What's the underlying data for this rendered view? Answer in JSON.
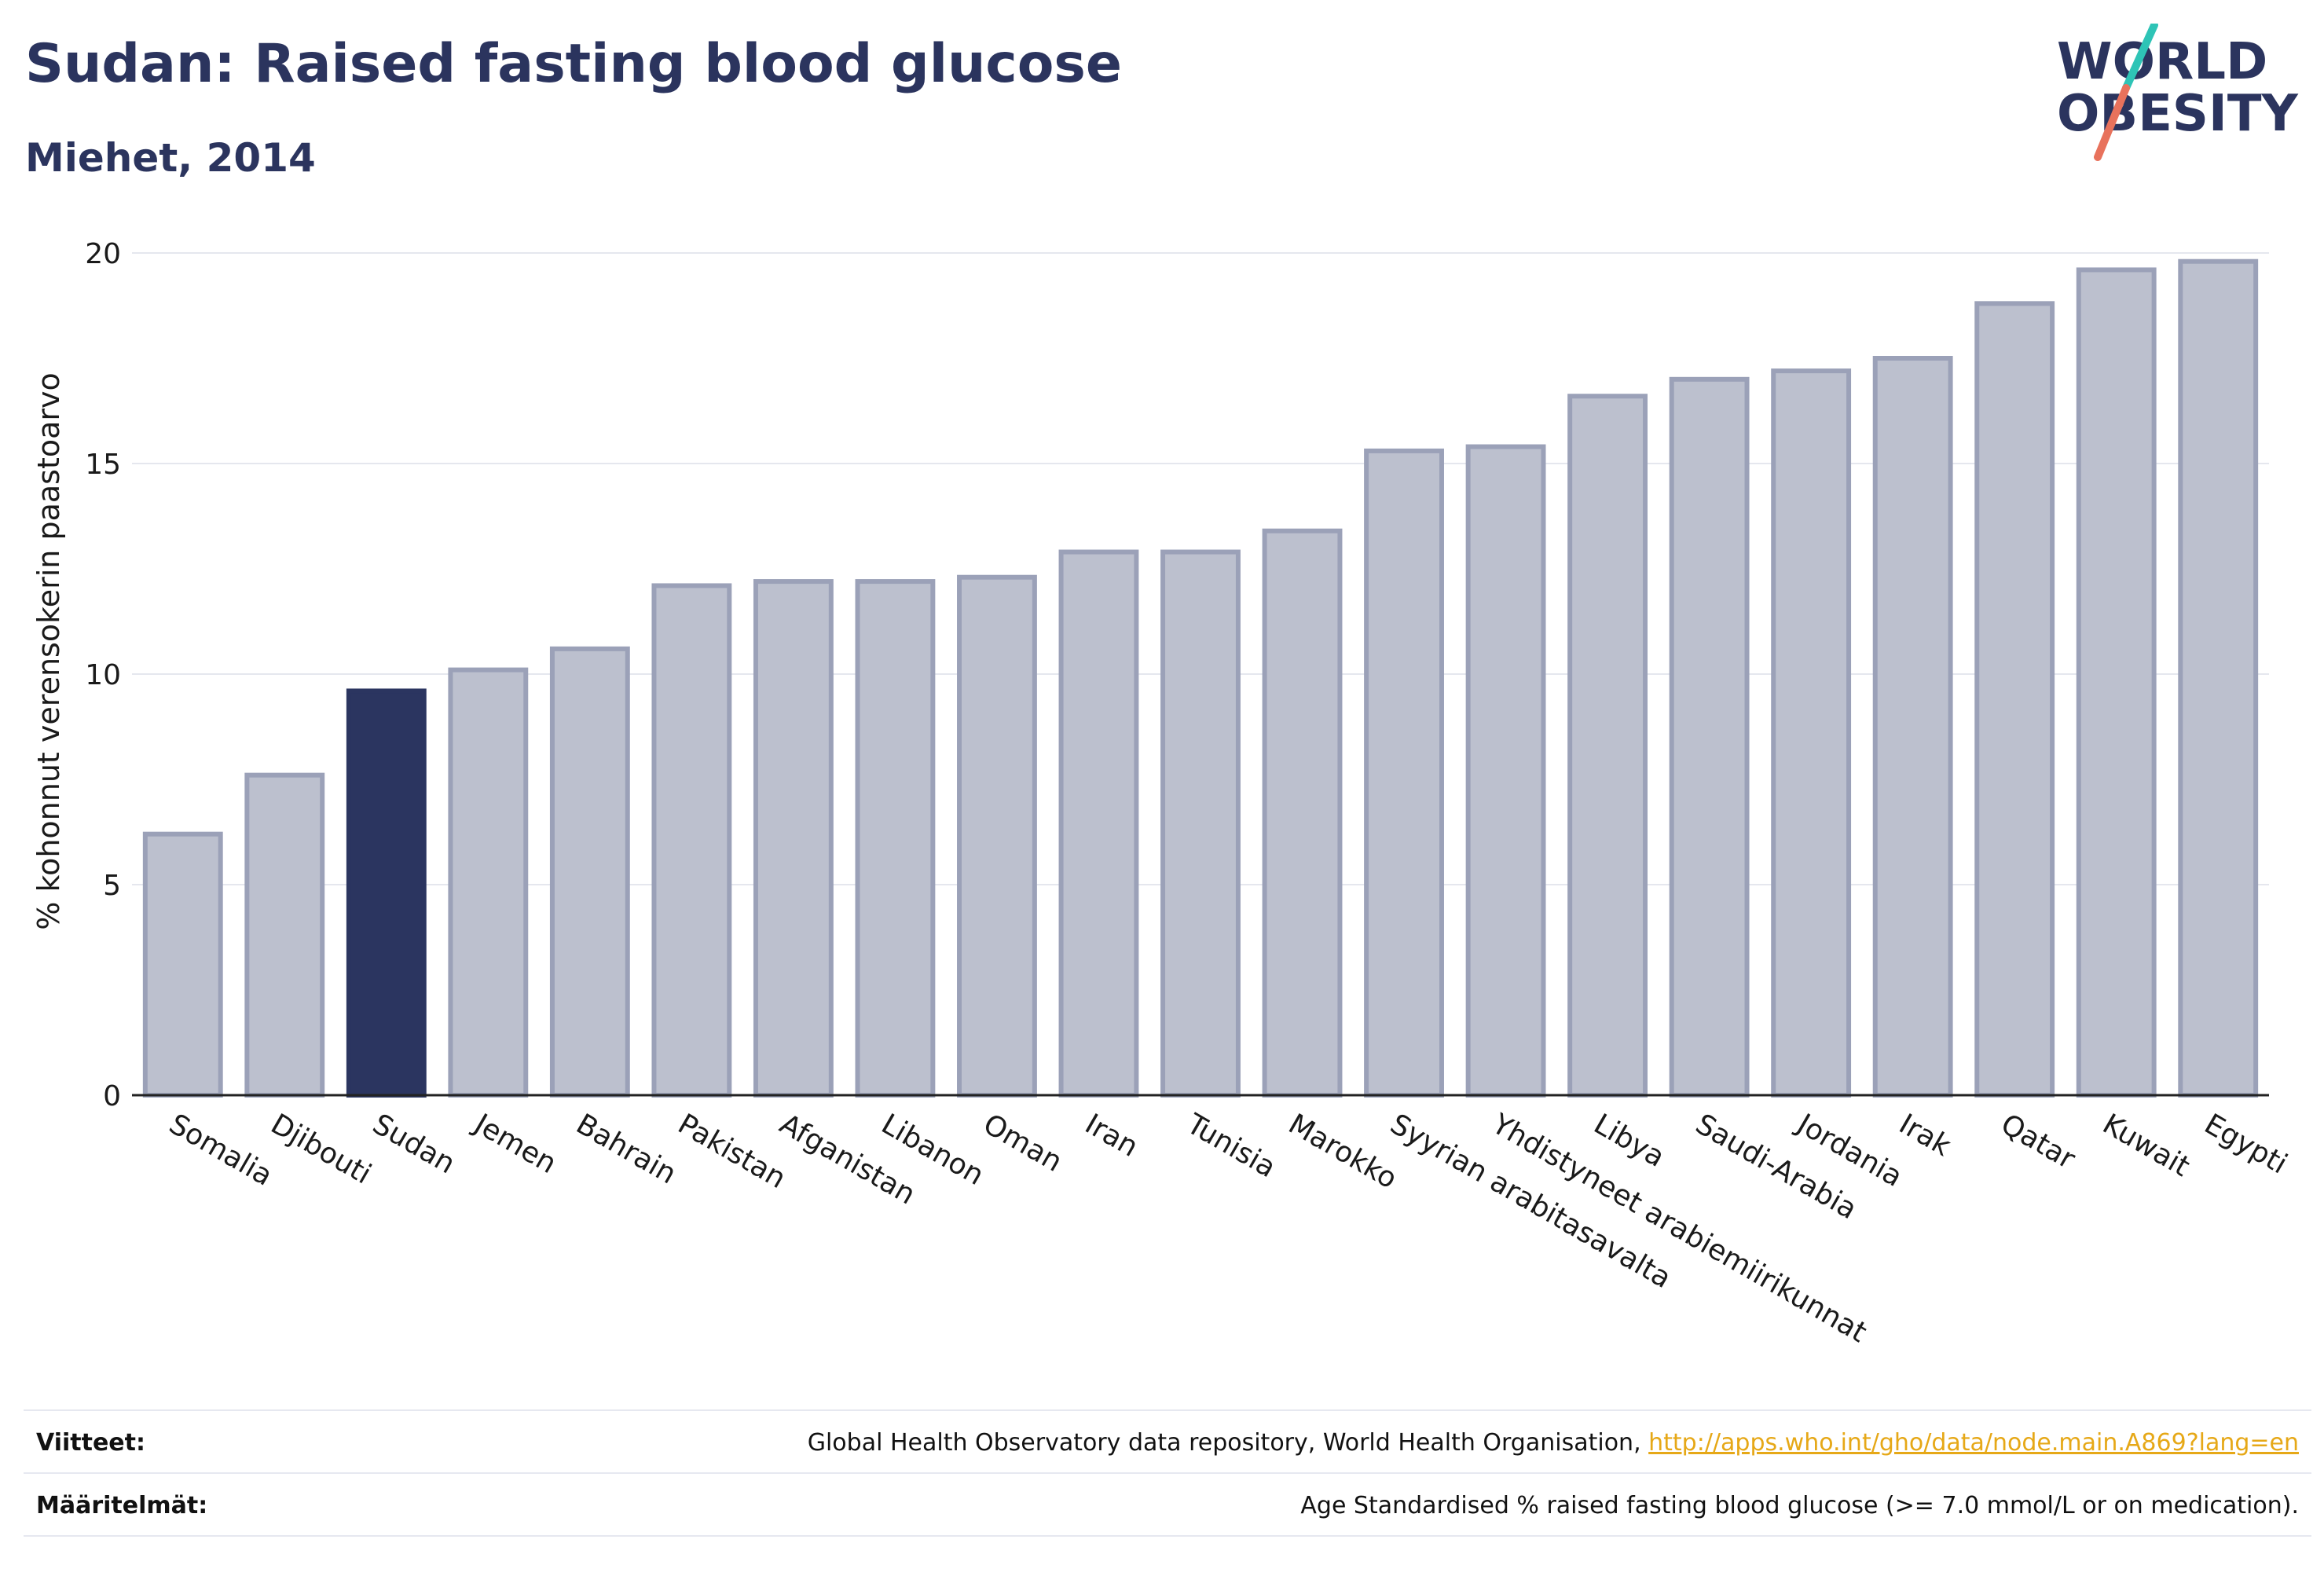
{
  "header": {
    "title": "Sudan: Raised fasting blood glucose",
    "subtitle": "Miehet, 2014"
  },
  "logo": {
    "line1": "WORLD",
    "line2": "OBESITY",
    "brand_color": "#2b345e",
    "accent_teal": "#2ec4b6",
    "accent_red": "#e8725c"
  },
  "colors": {
    "highlight_bar": "#2b3560",
    "other_bar_fill": "#bcc0ce",
    "other_bar_stroke": "#9ba1b8",
    "grid": "#e5e7ee"
  },
  "chart_data": {
    "type": "bar",
    "title": "Sudan: Raised fasting blood glucose",
    "subtitle": "Miehet, 2014",
    "xlabel": "",
    "ylabel": "% kohonnut verensokerin paastoarvo",
    "ylim": [
      0,
      20
    ],
    "yticks": [
      0,
      5,
      10,
      15,
      20
    ],
    "grid": true,
    "highlight": "Sudan",
    "categories": [
      "Somalia",
      "Djibouti",
      "Sudan",
      "Jemen",
      "Bahrain",
      "Pakistan",
      "Afganistan",
      "Libanon",
      "Oman",
      "Iran",
      "Tunisia",
      "Marokko",
      "Syyrian arabitasavalta",
      "Yhdistyneet arabiemiirikunnat",
      "Libya",
      "Saudi-Arabia",
      "Jordania",
      "Irak",
      "Qatar",
      "Kuwait",
      "Egypti"
    ],
    "values": [
      6.2,
      7.6,
      9.6,
      10.1,
      10.6,
      12.1,
      12.2,
      12.2,
      12.3,
      12.9,
      12.9,
      13.4,
      15.3,
      15.4,
      16.6,
      17.0,
      17.2,
      17.5,
      18.8,
      19.6,
      19.8
    ]
  },
  "footer": {
    "sources_label": "Viitteet:",
    "sources_text": "Global Health Observatory data repository, World Health Organisation, ",
    "sources_link": "http://apps.who.int/gho/data/node.main.A869?lang=en",
    "definitions_label": "Määritelmät:",
    "definitions_text": "Age Standardised % raised fasting blood glucose (>= 7.0 mmol/L or on medication)."
  }
}
